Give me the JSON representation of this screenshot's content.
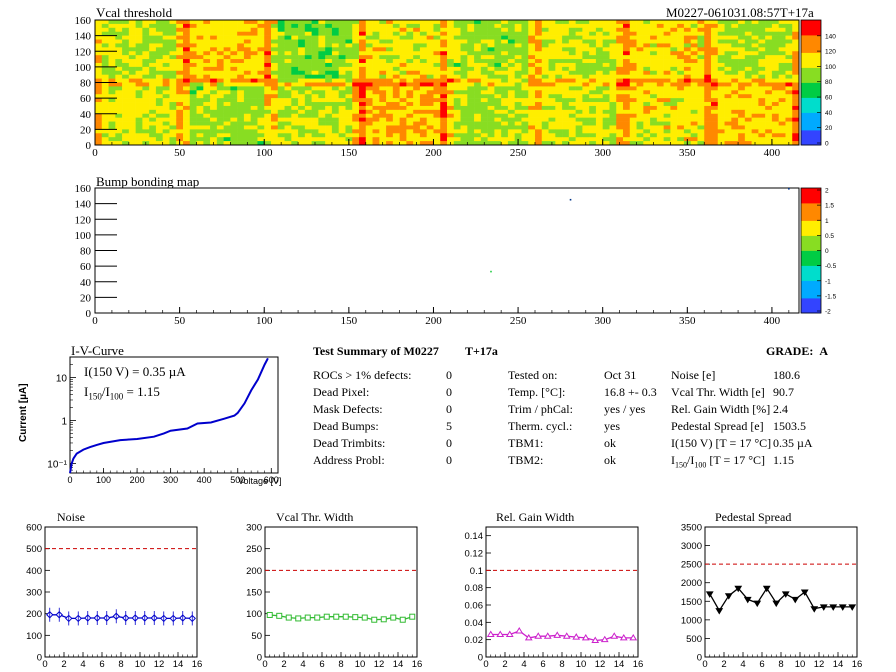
{
  "header": {
    "vcal_title": "Vcal threshold",
    "module_id": "M0227-061031.08:57T+17a",
    "bump_title": "Bump bonding map"
  },
  "maps": {
    "xticks": [
      0,
      50,
      100,
      150,
      200,
      250,
      300,
      350,
      400
    ],
    "yticks": [
      0,
      20,
      40,
      60,
      80,
      100,
      120,
      140,
      160
    ],
    "xrange": [
      0,
      416
    ],
    "yrange": [
      0,
      160
    ],
    "vcal_palette_ticks": [
      "0",
      "20",
      "40",
      "60",
      "80",
      "100",
      "120",
      "140"
    ],
    "bump_palette_ticks": [
      "-2",
      "-1.5",
      "-1",
      "-0.5",
      "0",
      "0.5",
      "1",
      "1.5",
      "2"
    ],
    "bump_points": [
      {
        "x": 281,
        "y": 145
      },
      {
        "x": 234,
        "y": 53
      },
      {
        "x": 410,
        "y": 159
      }
    ]
  },
  "iv": {
    "title": "I-V-Curve",
    "annotation_1": "I(150 V) = 0.35 µA",
    "annotation_2_main": "I",
    "annotation_2_sub1": "150",
    "annotation_2_sep": "/I",
    "annotation_2_sub2": "100",
    "annotation_2_val": "=  1.15",
    "ylabel": "Current [µA]",
    "xlabel": "Voltage [V]",
    "xticks": [
      "0",
      "100",
      "200",
      "300",
      "400",
      "500",
      "600"
    ],
    "yticks": [
      "10⁻¹",
      "1",
      "10"
    ]
  },
  "summary": {
    "title": "Test Summary of M0227",
    "temp_tag": "T+17a",
    "grade_label": "GRADE:",
    "grade_value": "A",
    "left": [
      {
        "label": "ROCs > 1% defects:",
        "value": "0"
      },
      {
        "label": "Dead Pixel:",
        "value": "0"
      },
      {
        "label": "Mask Defects:",
        "value": "0"
      },
      {
        "label": "Dead Bumps:",
        "value": "5"
      },
      {
        "label": "Dead Trimbits:",
        "value": "0"
      },
      {
        "label": "Address Probl:",
        "value": "0"
      }
    ],
    "middle": [
      {
        "label": "Tested on:",
        "value": "Oct 31"
      },
      {
        "label": "Temp. [°C]:",
        "value": "16.8 +- 0.3"
      },
      {
        "label": "Trim / phCal:",
        "value": "yes / yes"
      },
      {
        "label": "Therm. cycl.:",
        "value": "yes"
      },
      {
        "label": "TBM1:",
        "value": "ok"
      },
      {
        "label": "TBM2:",
        "value": "ok"
      }
    ],
    "right": [
      {
        "label": "Noise [e]",
        "value": "180.6"
      },
      {
        "label": "Vcal Thr. Width [e]",
        "value": "90.7"
      },
      {
        "label": "Rel. Gain Width [%]",
        "value": "2.4"
      },
      {
        "label": "Pedestal Spread [e]",
        "value": "1503.5"
      },
      {
        "label": "I(150 V) [T = 17 °C]",
        "value": "0.35 µA"
      },
      {
        "label_main": "I",
        "label_sub1": "150",
        "label_sep": "/I",
        "label_sub2": "100",
        "label_rest": "  [T = 17 °C]",
        "value": "1.15"
      }
    ]
  },
  "chart_data": [
    {
      "type": "heatmap",
      "title": "Vcal threshold",
      "xlim": [
        0,
        416
      ],
      "ylim": [
        0,
        160
      ],
      "zlim": [
        0,
        150
      ],
      "description_values": "16 ROC blocks (8 x 2), values mostly 80-140"
    },
    {
      "type": "heatmap",
      "title": "Bump bonding map",
      "xlim": [
        0,
        416
      ],
      "ylim": [
        0,
        160
      ],
      "zlim": [
        -2,
        2
      ]
    },
    {
      "type": "line",
      "title": "I-V-Curve",
      "xlabel": "Voltage [V]",
      "ylabel": "Current [µA]",
      "yscale": "log",
      "xlim": [
        0,
        620
      ],
      "ylim": [
        0.06,
        30
      ],
      "x": [
        0,
        5,
        10,
        20,
        40,
        60,
        80,
        100,
        150,
        200,
        250,
        280,
        300,
        350,
        380,
        420,
        460,
        490,
        500,
        520,
        540,
        560,
        580,
        590
      ],
      "y": [
        0.06,
        0.1,
        0.13,
        0.17,
        0.21,
        0.24,
        0.27,
        0.3,
        0.35,
        0.37,
        0.42,
        0.5,
        0.58,
        0.65,
        0.85,
        0.9,
        1.1,
        1.3,
        1.5,
        2.5,
        5,
        9,
        20,
        28
      ]
    },
    {
      "type": "line",
      "title": "Noise",
      "xlim": [
        0,
        16
      ],
      "ylim": [
        0,
        600
      ],
      "threshold": 500,
      "x": [
        0,
        1,
        2,
        3,
        4,
        5,
        6,
        7,
        8,
        9,
        10,
        11,
        12,
        13,
        14,
        15
      ],
      "values": [
        195,
        195,
        178,
        178,
        180,
        180,
        180,
        188,
        180,
        180,
        180,
        180,
        178,
        178,
        180,
        178
      ],
      "color": "#0000cc"
    },
    {
      "type": "line",
      "title": "Vcal Thr. Width",
      "xlim": [
        0,
        16
      ],
      "ylim": [
        0,
        300
      ],
      "threshold": 200,
      "x": [
        0,
        1,
        2,
        3,
        4,
        5,
        6,
        7,
        8,
        9,
        10,
        11,
        12,
        13,
        14,
        15
      ],
      "values": [
        97,
        95,
        91,
        89,
        91,
        91,
        93,
        93,
        93,
        92,
        91,
        86,
        87,
        91,
        86,
        93
      ],
      "color": "#33bb33"
    },
    {
      "type": "line",
      "title": "Rel. Gain Width",
      "xlim": [
        0,
        16
      ],
      "ylim": [
        0,
        0.15
      ],
      "threshold": 0.1,
      "x": [
        0,
        1,
        2,
        3,
        4,
        5,
        6,
        7,
        8,
        9,
        10,
        11,
        12,
        13,
        14,
        15
      ],
      "values": [
        0.026,
        0.026,
        0.026,
        0.03,
        0.022,
        0.024,
        0.024,
        0.025,
        0.024,
        0.023,
        0.022,
        0.019,
        0.02,
        0.024,
        0.022,
        0.022
      ],
      "color": "#cc22cc"
    },
    {
      "type": "line",
      "title": "Pedestal Spread",
      "xlim": [
        0,
        16
      ],
      "ylim": [
        0,
        3500
      ],
      "threshold": 2500,
      "x": [
        0,
        1,
        2,
        3,
        4,
        5,
        6,
        7,
        8,
        9,
        10,
        11,
        12,
        13,
        14,
        15
      ],
      "values": [
        1700,
        1250,
        1650,
        1850,
        1550,
        1450,
        1850,
        1450,
        1700,
        1550,
        1750,
        1300,
        1350,
        1350,
        1350,
        1350
      ],
      "color": "#000000"
    }
  ],
  "small_xticks": [
    "0",
    "2",
    "4",
    "6",
    "8",
    "10",
    "12",
    "14",
    "16"
  ],
  "small_yticks": [
    [
      "0",
      "100",
      "200",
      "300",
      "400",
      "500",
      "600"
    ],
    [
      "0",
      "50",
      "100",
      "150",
      "200",
      "250",
      "300"
    ],
    [
      "0",
      "0.02",
      "0.04",
      "0.06",
      "0.08",
      "0.1",
      "0.12",
      "0.14"
    ],
    [
      "0",
      "500",
      "1000",
      "1500",
      "2000",
      "2500",
      "3000",
      "3500"
    ]
  ]
}
